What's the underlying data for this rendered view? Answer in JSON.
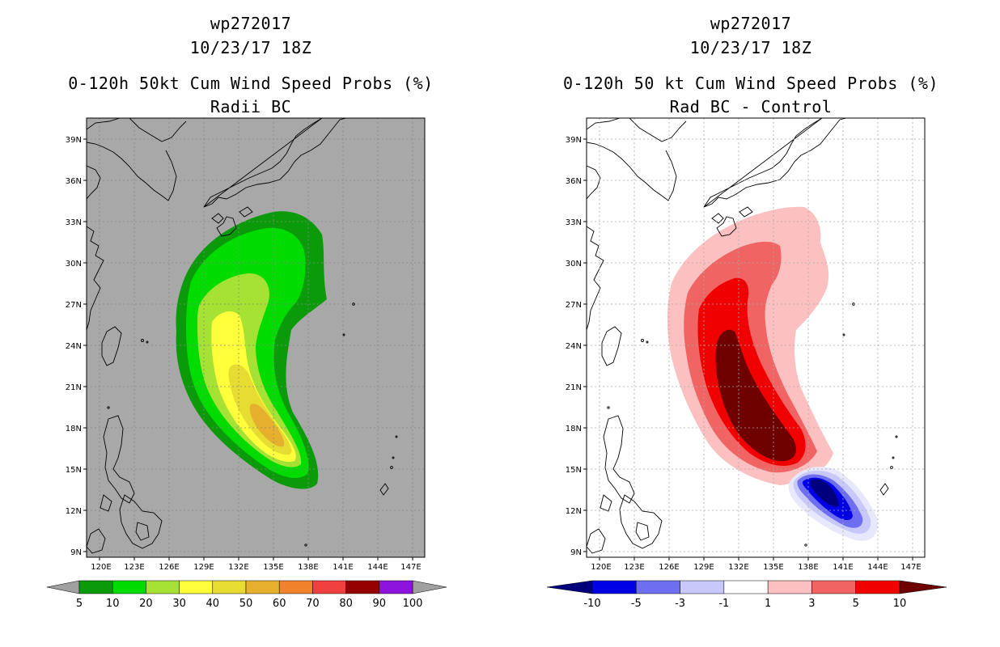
{
  "left": {
    "title1": "wp272017",
    "title2": "10/23/17 18Z",
    "title3": "0-120h 50kt Cum Wind Speed Probs (%)",
    "title4": "Radii BC",
    "colorbar": {
      "labels": [
        "5",
        "10",
        "20",
        "30",
        "40",
        "50",
        "60",
        "70",
        "80",
        "90",
        "100"
      ],
      "colors": [
        "#0a9a0a",
        "#00dc00",
        "#a5e234",
        "#ffff3c",
        "#e6dc32",
        "#e6af2d",
        "#f0822a",
        "#f04040",
        "#960000",
        "#8c14dc"
      ],
      "end_left_color": "#a0a0a0",
      "end_right_color": "#a0a0a0"
    },
    "map_background": "#a8a8a8"
  },
  "right": {
    "title1": "wp272017",
    "title2": "10/23/17 18Z",
    "title3": "0-120h 50 kt Cum Wind Speed Probs (%)",
    "title4": "Rad BC - Control",
    "colorbar": {
      "labels": [
        "-10",
        "-5",
        "-3",
        "-1",
        "1",
        "3",
        "5",
        "10"
      ],
      "colors": [
        "#0000e6",
        "#6e6ef0",
        "#c8c8fa",
        "#ffffff",
        "#fcc0c0",
        "#f06464",
        "#f00000"
      ],
      "end_left_color": "#00007d",
      "end_right_color": "#6e0000"
    },
    "map_background": "#ffffff"
  },
  "axes": {
    "lon_labels": [
      "120E",
      "123E",
      "126E",
      "129E",
      "132E",
      "135E",
      "138E",
      "141E",
      "144E",
      "147E"
    ],
    "lat_labels": [
      "39N",
      "36N",
      "33N",
      "30N",
      "27N",
      "24N",
      "21N",
      "18N",
      "15N",
      "12N",
      "9N"
    ]
  }
}
